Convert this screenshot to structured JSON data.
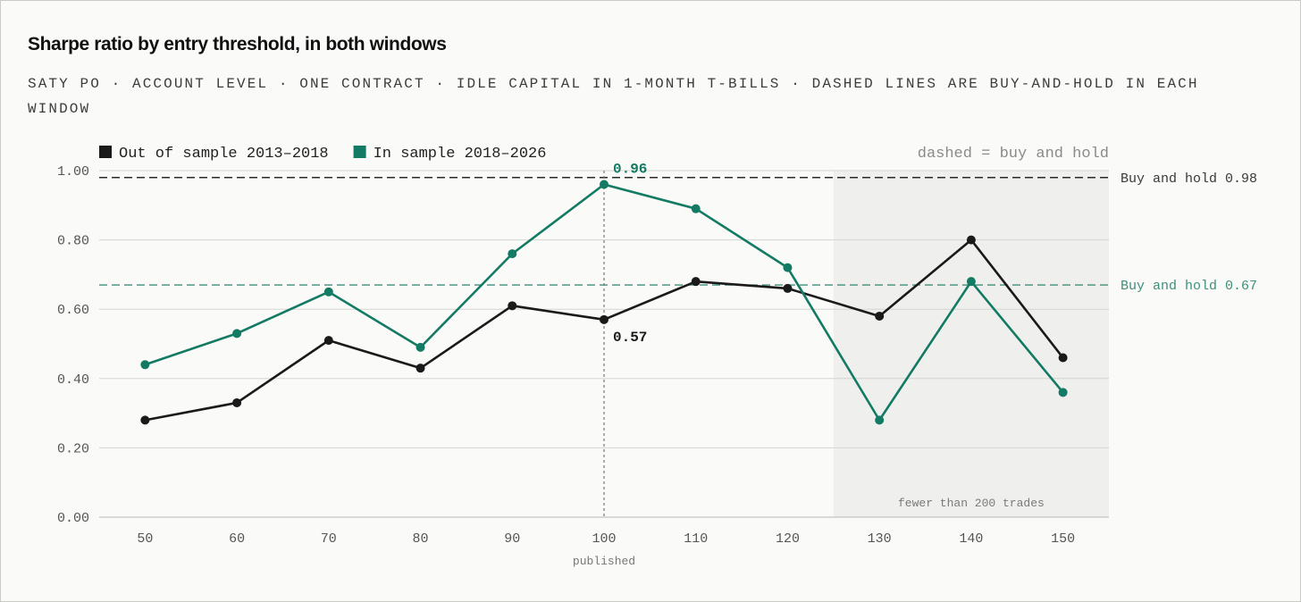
{
  "title": "Sharpe ratio by entry threshold, in both windows",
  "subtitle": "SATY PO · ACCOUNT LEVEL · ONE CONTRACT · IDLE CAPITAL IN 1-MONTH T-BILLS · DASHED LINES ARE BUY-AND-HOLD IN EACH WINDOW",
  "legend": {
    "note": "dashed = buy and hold"
  },
  "colors": {
    "out_of_sample": "#1a1a1a",
    "in_sample": "#137a63",
    "grid": "#d4d4d0",
    "shade": "#efefed",
    "axis_text": "#555555"
  },
  "chart_data": {
    "type": "line",
    "x": [
      50,
      60,
      70,
      80,
      90,
      100,
      110,
      120,
      130,
      140,
      150
    ],
    "x_tick_labels": [
      "50",
      "60",
      "70",
      "80",
      "90",
      "100",
      "110",
      "120",
      "130",
      "140",
      "150"
    ],
    "y_tick_labels": [
      "0.00",
      "0.20",
      "0.40",
      "0.60",
      "0.80",
      "1.00"
    ],
    "ylim": [
      0,
      1.0
    ],
    "xlim": [
      45,
      155
    ],
    "grid": true,
    "legend_position": "top-left",
    "series": [
      {
        "name": "Out of sample 2013–2018",
        "key": "out_of_sample",
        "values": [
          0.28,
          0.33,
          0.51,
          0.43,
          0.61,
          0.57,
          0.68,
          0.66,
          0.58,
          0.8,
          0.46
        ]
      },
      {
        "name": "In sample 2018–2026",
        "key": "in_sample",
        "values": [
          0.44,
          0.53,
          0.65,
          0.49,
          0.76,
          0.96,
          0.89,
          0.72,
          0.28,
          0.68,
          0.36
        ]
      }
    ],
    "reference_lines": [
      {
        "label": "Buy and hold 0.98",
        "value": 0.98,
        "series": "out_of_sample"
      },
      {
        "label": "Buy and hold 0.67",
        "value": 0.67,
        "series": "in_sample"
      }
    ],
    "highlight": {
      "x": 100,
      "label": "published",
      "annotations": [
        {
          "text": "0.96",
          "series": "in_sample"
        },
        {
          "text": "0.57",
          "series": "out_of_sample"
        }
      ]
    },
    "shaded_region": {
      "x_from": 125,
      "x_to": 155,
      "label": "fewer than 200 trades"
    }
  }
}
